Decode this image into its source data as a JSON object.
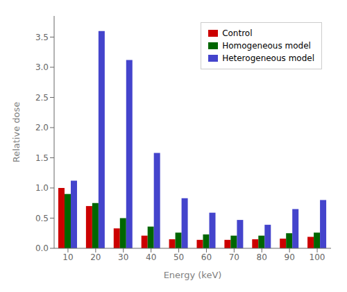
{
  "chart_data": {
    "type": "bar",
    "categories": [
      "10",
      "20",
      "30",
      "40",
      "50",
      "60",
      "70",
      "80",
      "90",
      "100"
    ],
    "series": [
      {
        "name": "Control",
        "color": "#cc0000",
        "values": [
          1.0,
          0.7,
          0.33,
          0.21,
          0.15,
          0.14,
          0.14,
          0.15,
          0.16,
          0.19
        ]
      },
      {
        "name": "Homogeneous model",
        "color": "#006600",
        "values": [
          0.9,
          0.75,
          0.5,
          0.36,
          0.26,
          0.23,
          0.21,
          0.21,
          0.25,
          0.26
        ]
      },
      {
        "name": "Heterogeneous model",
        "color": "#4444cc",
        "values": [
          1.12,
          3.6,
          3.12,
          1.58,
          0.83,
          0.59,
          0.47,
          0.39,
          0.65,
          0.8
        ]
      }
    ],
    "xlabel": "Energy (keV)",
    "ylabel": "Relative dose",
    "ylim": [
      0.0,
      3.85
    ],
    "yticks": [
      {
        "value": 0,
        "label": "0.0"
      },
      0.5,
      {
        "value": 1,
        "label": "1.0"
      },
      1.5,
      {
        "value": 2,
        "label": "2.0"
      },
      2.5,
      {
        "value": 3,
        "label": "3.0"
      },
      3.5
    ],
    "grid": false,
    "legend": "upper right"
  }
}
